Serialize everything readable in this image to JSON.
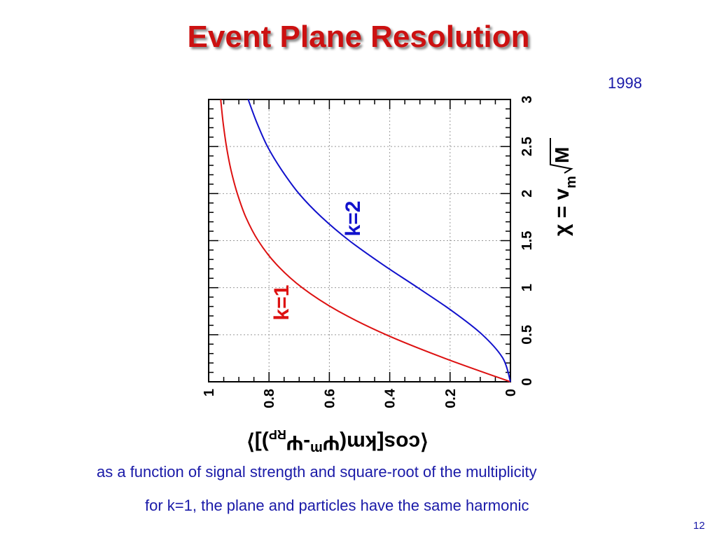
{
  "slide": {
    "title": "Event Plane Resolution",
    "year": "1998",
    "caption_line1": "as a function of signal strength and square-root of the multiplicity",
    "caption_line2": "for k=1, the plane and particles have the same harmonic",
    "page_number": "12"
  },
  "colors": {
    "title": "#cc1111",
    "text": "#1a1aa8",
    "k1_curve": "#dd1111",
    "k2_curve": "#1111cc"
  },
  "chart_data": {
    "type": "line",
    "orientation": "rotated 90° clockwise",
    "x_axis": {
      "label": "χ = v_m √M",
      "ylim": [
        0,
        3
      ],
      "ticks": [
        "0",
        "0.5",
        "1",
        "1.5",
        "2",
        "2.5",
        "3"
      ]
    },
    "y_axis": {
      "label": "⟨cos[km(Ψ_m - Ψ_RP)]⟩",
      "ylim": [
        0,
        1
      ],
      "ticks": [
        "0",
        "0.2",
        "0.4",
        "0.6",
        "0.8",
        "1"
      ]
    },
    "grid": true,
    "series": [
      {
        "name": "k=1",
        "color": "#dd1111",
        "x": [
          0,
          0.25,
          0.5,
          0.75,
          1.0,
          1.25,
          1.5,
          1.75,
          2.0,
          2.25,
          2.5,
          2.75,
          3.0
        ],
        "y": [
          0,
          0.218,
          0.412,
          0.57,
          0.69,
          0.776,
          0.836,
          0.877,
          0.905,
          0.926,
          0.941,
          0.952,
          0.96
        ]
      },
      {
        "name": "k=2",
        "color": "#1111cc",
        "x": [
          0,
          0.25,
          0.5,
          0.75,
          1.0,
          1.25,
          1.5,
          1.75,
          2.0,
          2.25,
          2.5,
          2.75,
          3.0
        ],
        "y": [
          0,
          0.025,
          0.093,
          0.192,
          0.307,
          0.425,
          0.534,
          0.626,
          0.701,
          0.758,
          0.805,
          0.84,
          0.869
        ]
      }
    ]
  }
}
